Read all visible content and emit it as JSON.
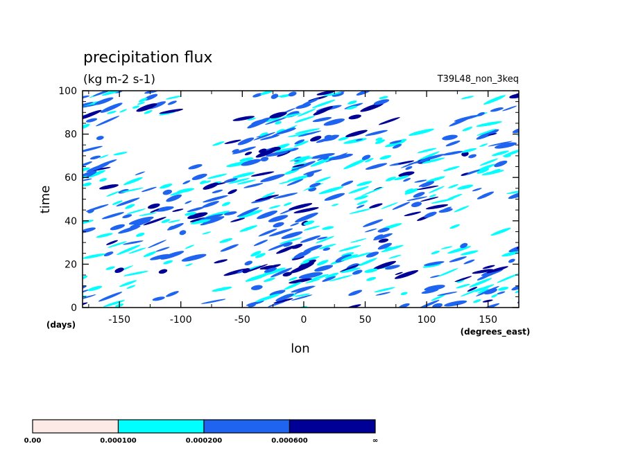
{
  "chart_data": {
    "type": "heatmap",
    "title": "precipitation flux",
    "units": "(kg m-2 s-1)",
    "run_label": "T39L48_non_3keq",
    "xlabel": "lon",
    "xunits": "(degrees_east)",
    "ylabel": "time",
    "yunits": "(days)",
    "xlim": [
      -180,
      175
    ],
    "ylim": [
      0,
      100
    ],
    "xticks": [
      -150,
      -100,
      -50,
      0,
      50,
      100,
      150
    ],
    "yticks": [
      0,
      20,
      40,
      60,
      80,
      100
    ],
    "colorbar": {
      "levels": [
        "0.00",
        "0.000100",
        "0.000200",
        "0.000600",
        "∞"
      ],
      "colors": [
        "#fdeae6",
        "#00ffff",
        "#1e64f0",
        "#000096"
      ]
    },
    "background_color": "#ffffff"
  }
}
